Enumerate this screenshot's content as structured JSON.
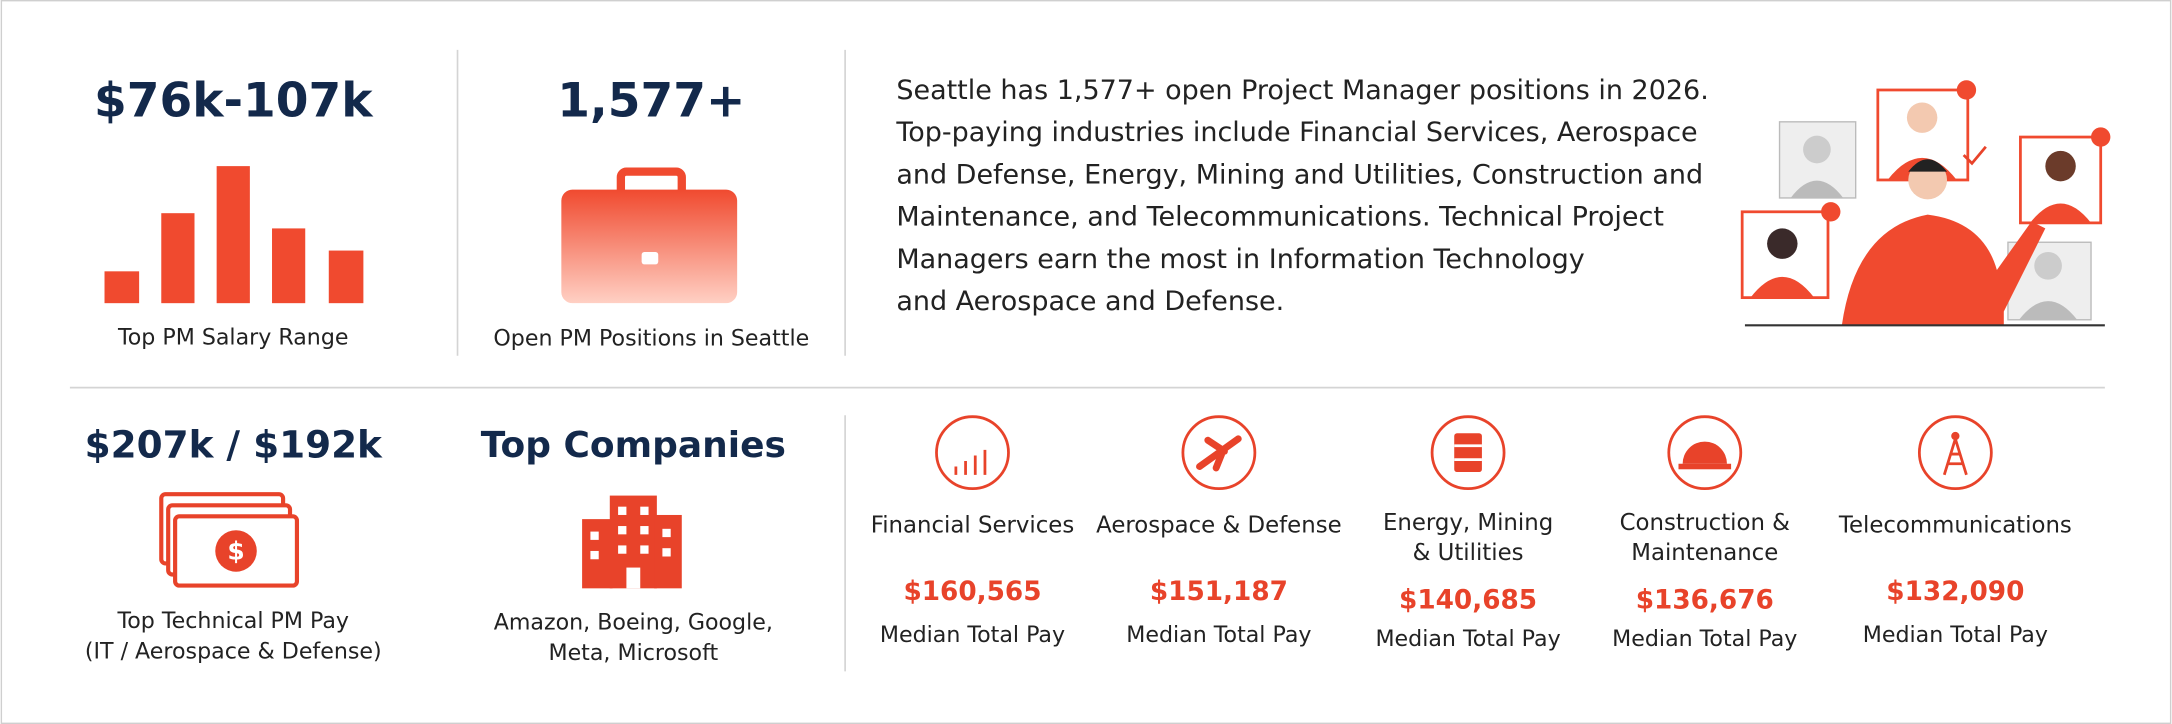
{
  "stats": [
    {
      "value": "$76k-107k",
      "label": [
        "Top PM Salary Range"
      ]
    },
    {
      "value": "1,577+",
      "label": [
        "Open PM Positions in Seattle"
      ]
    },
    {
      "value": "$207k / $192k",
      "label": [
        "Top Technical PM Pay",
        "(IT / Aerospace & Defense)"
      ]
    },
    {
      "value": "Top Companies",
      "label": [
        "Amazon, Boeing, Google,",
        "Meta, Microsoft"
      ]
    }
  ],
  "summary": [
    "Seattle has 1,577+ open Project Manager positions in 2026.",
    "Top-paying industries include Financial Services, Aerospace",
    "and Defense, Energy, Mining and Utilities, Construction and",
    "Maintenance, and Telecommunications. Technical Project",
    "Managers earn the most in Information Technology",
    "and Aerospace and Defense."
  ],
  "industries": [
    {
      "name": [
        "Financial Services"
      ],
      "pay": "$160,565",
      "pay_label": "Median Total Pay"
    },
    {
      "name": [
        "Aerospace & Defense"
      ],
      "pay": "$151,187",
      "pay_label": "Median Total Pay"
    },
    {
      "name": [
        "Energy, Mining",
        "& Utilities"
      ],
      "pay": "$140,685",
      "pay_label": "Median Total Pay"
    },
    {
      "name": [
        "Construction &",
        "Maintenance"
      ],
      "pay": "$136,676",
      "pay_label": "Median Total Pay"
    },
    {
      "name": [
        "Telecommunications"
      ],
      "pay": "$132,090",
      "pay_label": "Median Total Pay"
    }
  ]
}
